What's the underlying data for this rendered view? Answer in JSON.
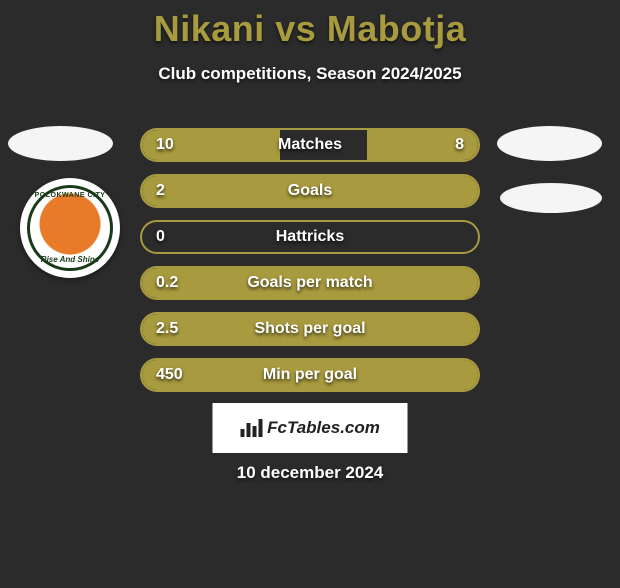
{
  "title": "Nikani vs Mabotja",
  "subtitle": "Club competitions, Season 2024/2025",
  "colors": {
    "background": "#2b2b2b",
    "accent": "#a89a3e",
    "text": "#ffffff",
    "brand_bg": "#ffffff",
    "brand_text": "#222222"
  },
  "typography": {
    "title_fontsize": 36,
    "subtitle_fontsize": 17,
    "bar_label_fontsize": 16,
    "date_fontsize": 17
  },
  "bars": [
    {
      "label": "Matches",
      "left": "10",
      "right": "8",
      "left_pct": 41,
      "right_pct": 33
    },
    {
      "label": "Goals",
      "left": "2",
      "right": "",
      "left_pct": 100,
      "right_pct": 0
    },
    {
      "label": "Hattricks",
      "left": "0",
      "right": "",
      "left_pct": 0,
      "right_pct": 0
    },
    {
      "label": "Goals per match",
      "left": "0.2",
      "right": "",
      "left_pct": 100,
      "right_pct": 0
    },
    {
      "label": "Shots per goal",
      "left": "2.5",
      "right": "",
      "left_pct": 100,
      "right_pct": 0
    },
    {
      "label": "Min per goal",
      "left": "450",
      "right": "",
      "left_pct": 100,
      "right_pct": 0
    }
  ],
  "brand": "FcTables.com",
  "date": "10 december 2024",
  "badge": {
    "top": "POLOKWANE CITY",
    "bottom": "Rise And Shine"
  }
}
